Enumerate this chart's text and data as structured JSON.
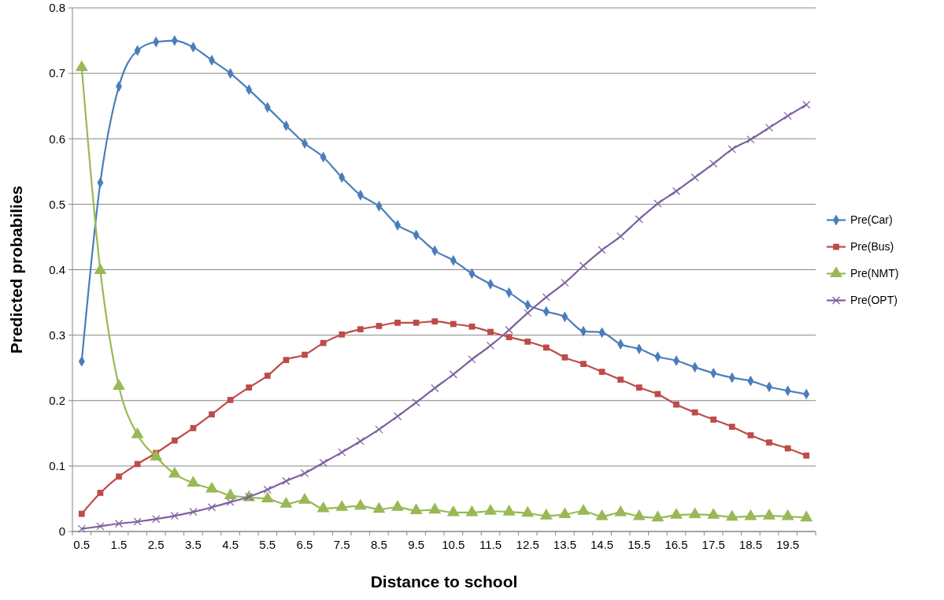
{
  "chart_data": {
    "type": "line",
    "xlabel": "Distance to school",
    "ylabel": "Predicted probabilies",
    "categories": [
      "0.5",
      null,
      "1.5",
      null,
      "2.5",
      null,
      "3.5",
      null,
      "4.5",
      null,
      "5.5",
      null,
      "6.5",
      null,
      "7.5",
      null,
      "8.5",
      null,
      "9.5",
      null,
      "10.5",
      null,
      "11.5",
      null,
      "12.5",
      null,
      "13.5",
      null,
      "14.5",
      null,
      "15.5",
      null,
      "16.5",
      null,
      "17.5",
      null,
      "18.5",
      null,
      "19.5",
      null
    ],
    "ylim": [
      0,
      0.8
    ],
    "yticks": [
      0,
      0.1,
      0.2,
      0.3,
      0.4,
      0.5,
      0.6,
      0.7,
      0.8
    ],
    "grid": "y",
    "legend": "right",
    "series": [
      {
        "name": "Pre(Car)",
        "color": "#4a7ebb",
        "marker": "diamond",
        "values": [
          0.26,
          0.533,
          0.68,
          0.735,
          0.748,
          0.75,
          0.74,
          0.72,
          0.7,
          0.675,
          0.648,
          0.62,
          0.593,
          0.572,
          0.541,
          0.514,
          0.497,
          0.468,
          0.453,
          0.429,
          0.414,
          0.394,
          0.378,
          0.365,
          0.346,
          0.336,
          0.328,
          0.306,
          0.304,
          0.286,
          0.279,
          0.267,
          0.261,
          0.251,
          0.242,
          0.235,
          0.23,
          0.221,
          0.215,
          0.21
        ]
      },
      {
        "name": "Pre(Bus)",
        "color": "#be4b48",
        "marker": "square",
        "values": [
          0.027,
          0.059,
          0.084,
          0.103,
          0.12,
          0.139,
          0.158,
          0.179,
          0.201,
          0.22,
          0.238,
          0.262,
          0.27,
          0.288,
          0.301,
          0.309,
          0.314,
          0.319,
          0.319,
          0.321,
          0.317,
          0.313,
          0.305,
          0.297,
          0.29,
          0.281,
          0.266,
          0.256,
          0.244,
          0.232,
          0.22,
          0.21,
          0.194,
          0.182,
          0.171,
          0.16,
          0.147,
          0.136,
          0.127,
          0.116
        ]
      },
      {
        "name": "Pre(NMT)",
        "color": "#98b954",
        "marker": "triangle",
        "values": [
          0.709,
          0.399,
          0.222,
          0.148,
          0.114,
          0.088,
          0.074,
          0.065,
          0.055,
          0.052,
          0.05,
          0.042,
          0.048,
          0.035,
          0.037,
          0.039,
          0.034,
          0.037,
          0.032,
          0.033,
          0.029,
          0.029,
          0.031,
          0.03,
          0.028,
          0.024,
          0.026,
          0.031,
          0.023,
          0.029,
          0.023,
          0.021,
          0.025,
          0.026,
          0.025,
          0.022,
          0.023,
          0.024,
          0.023,
          0.021
        ]
      },
      {
        "name": "Pre(OPT)",
        "color": "#7d60a0",
        "marker": "cross",
        "values": [
          0.004,
          0.008,
          0.012,
          0.015,
          0.019,
          0.024,
          0.03,
          0.037,
          0.045,
          0.053,
          0.064,
          0.077,
          0.089,
          0.105,
          0.121,
          0.138,
          0.156,
          0.176,
          0.197,
          0.219,
          0.24,
          0.263,
          0.284,
          0.308,
          0.334,
          0.358,
          0.38,
          0.406,
          0.43,
          0.451,
          0.477,
          0.501,
          0.52,
          0.541,
          0.562,
          0.584,
          0.599,
          0.617,
          0.635,
          0.652
        ]
      }
    ]
  }
}
